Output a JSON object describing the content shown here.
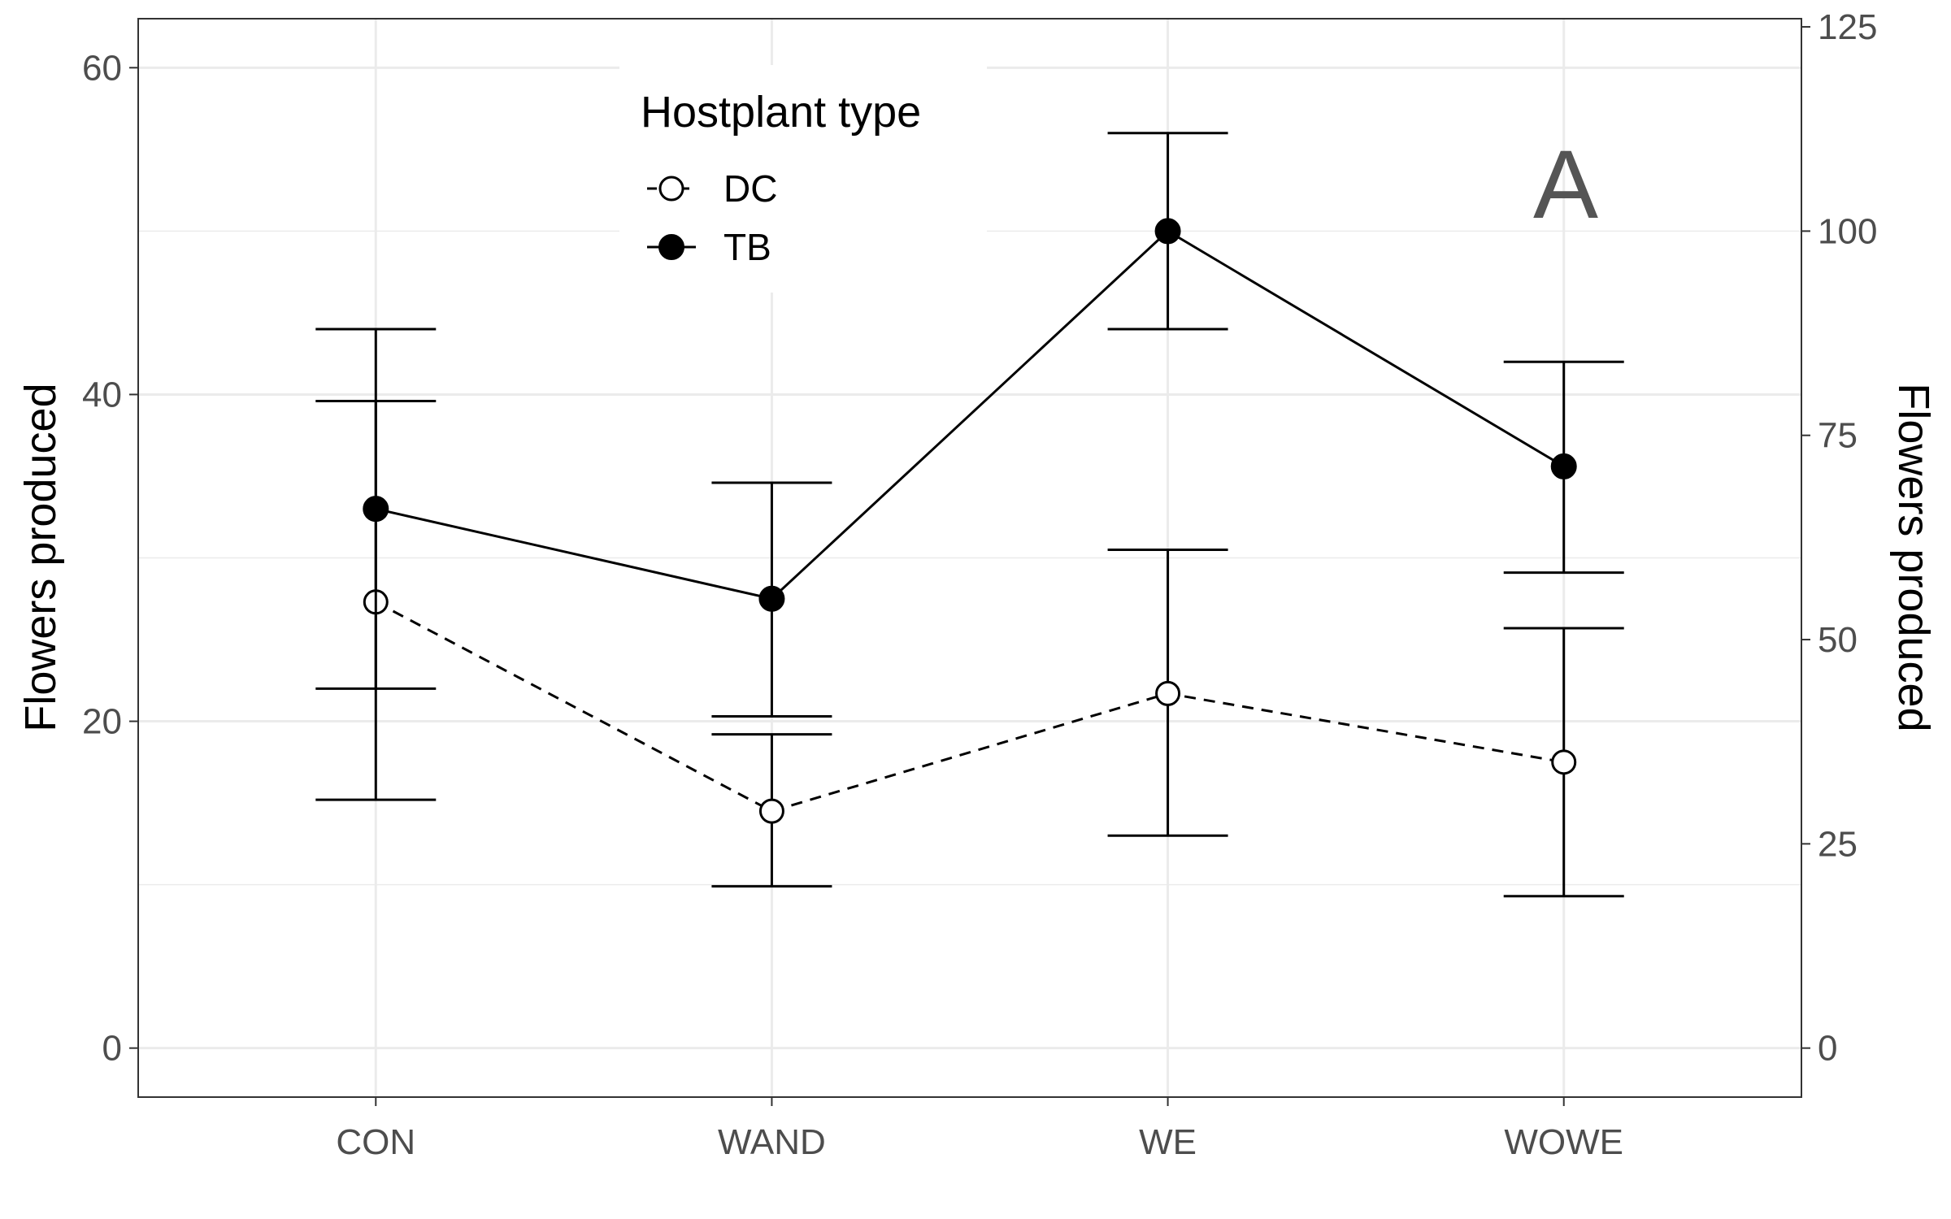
{
  "chart_data": {
    "type": "line",
    "categories": [
      "CON",
      "WAND",
      "WE",
      "WOWE"
    ],
    "ylabel": "Flowers produced",
    "ylabel_right": "Flowers produced",
    "ylim": [
      -3,
      63
    ],
    "ylim_right": [
      -6,
      126
    ],
    "yticks": [
      0,
      20,
      40,
      60
    ],
    "yticks_right": [
      0,
      25,
      50,
      75,
      100,
      125
    ],
    "grid": true,
    "panel_label": "A",
    "legend": {
      "title": "Hostplant type",
      "placement": "top-center",
      "entries": [
        "DC",
        "TB"
      ]
    },
    "series": [
      {
        "name": "DC",
        "marker": "open-circle",
        "linestyle": "dashed",
        "values": [
          27.3,
          14.5,
          21.7,
          17.5
        ],
        "error_low": [
          15.2,
          9.9,
          13.0,
          9.3
        ],
        "error_high": [
          39.6,
          19.2,
          30.5,
          25.7
        ]
      },
      {
        "name": "TB",
        "marker": "filled-circle",
        "linestyle": "solid",
        "values": [
          33.0,
          27.5,
          50.0,
          35.6
        ],
        "error_low": [
          22.0,
          20.3,
          44.0,
          29.1
        ],
        "error_high": [
          44.0,
          34.6,
          56.0,
          42.0
        ]
      }
    ]
  },
  "colors": {
    "line": "#000000",
    "grid": "#ebebeb",
    "panel_border": "#333333",
    "tick_text": "#4d4d4d",
    "panel_tag": "#555555"
  }
}
